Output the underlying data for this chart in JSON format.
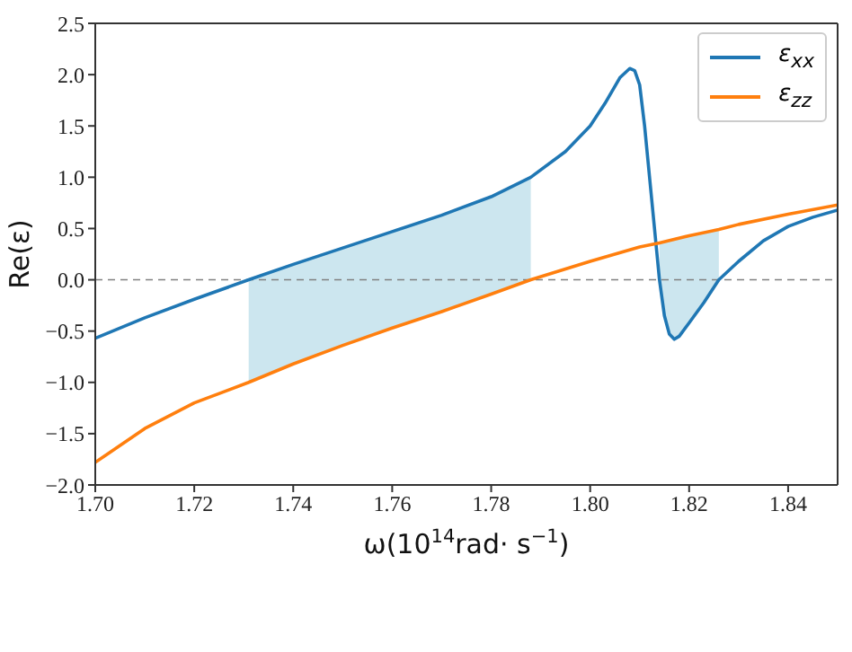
{
  "chart_data": {
    "type": "line",
    "xlabel": "ω(10$^{14}$rad· s$^{−1}$)",
    "ylabel": "Re(ε)",
    "xlim": [
      1.7,
      1.85
    ],
    "xticks": [
      {
        "value": 1.7,
        "label": "1.70"
      },
      {
        "value": 1.72,
        "label": "1.72"
      },
      {
        "value": 1.74,
        "label": "1.74"
      },
      {
        "value": 1.76,
        "label": "1.76"
      },
      {
        "value": 1.78,
        "label": "1.78"
      },
      {
        "value": 1.8,
        "label": "1.80"
      },
      {
        "value": 1.82,
        "label": "1.82"
      },
      {
        "value": 1.84,
        "label": "1.84"
      }
    ],
    "ylim": [
      -2.0,
      2.5
    ],
    "yticks": [
      {
        "value": -2.0,
        "label": "−2.0"
      },
      {
        "value": -1.5,
        "label": "−1.5"
      },
      {
        "value": -1.0,
        "label": "−1.0"
      },
      {
        "value": -0.5,
        "label": "−0.5"
      },
      {
        "value": 0,
        "label": "0.0"
      },
      {
        "value": 0.5,
        "label": "0.5"
      },
      {
        "value": 1.0,
        "label": "1.0"
      },
      {
        "value": 1.5,
        "label": "1.5"
      },
      {
        "value": 2.0,
        "label": "2.0"
      },
      {
        "value": 2.5,
        "label": "2.5"
      }
    ],
    "legend": "top right",
    "marker": "none",
    "line_style": "solid",
    "ref_lines": [
      {
        "axis": "y",
        "value": 0,
        "color": "#808080",
        "line_style": "dashed"
      }
    ],
    "series": [
      {
        "name": "ε$_{xx}$",
        "color": "#1f77b4",
        "x": [
          1.7,
          1.71,
          1.72,
          1.731,
          1.74,
          1.75,
          1.76,
          1.77,
          1.78,
          1.788,
          1.795,
          1.8,
          1.803,
          1.806,
          1.808,
          1.809,
          1.81,
          1.811,
          1.812,
          1.813,
          1.814,
          1.815,
          1.816,
          1.817,
          1.818,
          1.82,
          1.823,
          1.826,
          1.83,
          1.835,
          1.84,
          1.845,
          1.85
        ],
        "values": [
          -0.57,
          -0.37,
          -0.19,
          0.0,
          0.15,
          0.31,
          0.47,
          0.63,
          0.81,
          1.0,
          1.25,
          1.5,
          1.72,
          1.97,
          2.06,
          2.04,
          1.9,
          1.5,
          1.0,
          0.5,
          0.0,
          -0.35,
          -0.53,
          -0.58,
          -0.55,
          -0.42,
          -0.22,
          0.0,
          0.18,
          0.38,
          0.52,
          0.61,
          0.68
        ],
        "lower": [
          null,
          null,
          null,
          -1.0,
          -0.82,
          -0.64,
          -0.47,
          -0.31,
          -0.14,
          0.0,
          null,
          null,
          null,
          null,
          null,
          null,
          null,
          null,
          null,
          null,
          0.0,
          -0.35,
          -0.53,
          -0.58,
          -0.55,
          -0.42,
          -0.22,
          0.0,
          null,
          null,
          null,
          null,
          null
        ],
        "upper": [
          null,
          null,
          null,
          0.0,
          0.15,
          0.31,
          0.47,
          0.63,
          0.81,
          1.0,
          null,
          null,
          null,
          null,
          null,
          null,
          null,
          null,
          null,
          null,
          0.36,
          0.37,
          0.38,
          0.39,
          0.4,
          0.43,
          0.46,
          0.49,
          null,
          null,
          null,
          null,
          null
        ]
      },
      {
        "name": "ε$_{zz}$",
        "color": "#ff7f0e",
        "x": [
          1.7,
          1.71,
          1.72,
          1.731,
          1.74,
          1.75,
          1.76,
          1.77,
          1.78,
          1.788,
          1.8,
          1.81,
          1.814,
          1.82,
          1.826,
          1.83,
          1.84,
          1.85
        ],
        "values": [
          -1.78,
          -1.45,
          -1.2,
          -1.0,
          -0.82,
          -0.64,
          -0.47,
          -0.31,
          -0.14,
          0.0,
          0.18,
          0.32,
          0.36,
          0.43,
          0.49,
          0.54,
          0.64,
          0.73
        ]
      }
    ]
  }
}
